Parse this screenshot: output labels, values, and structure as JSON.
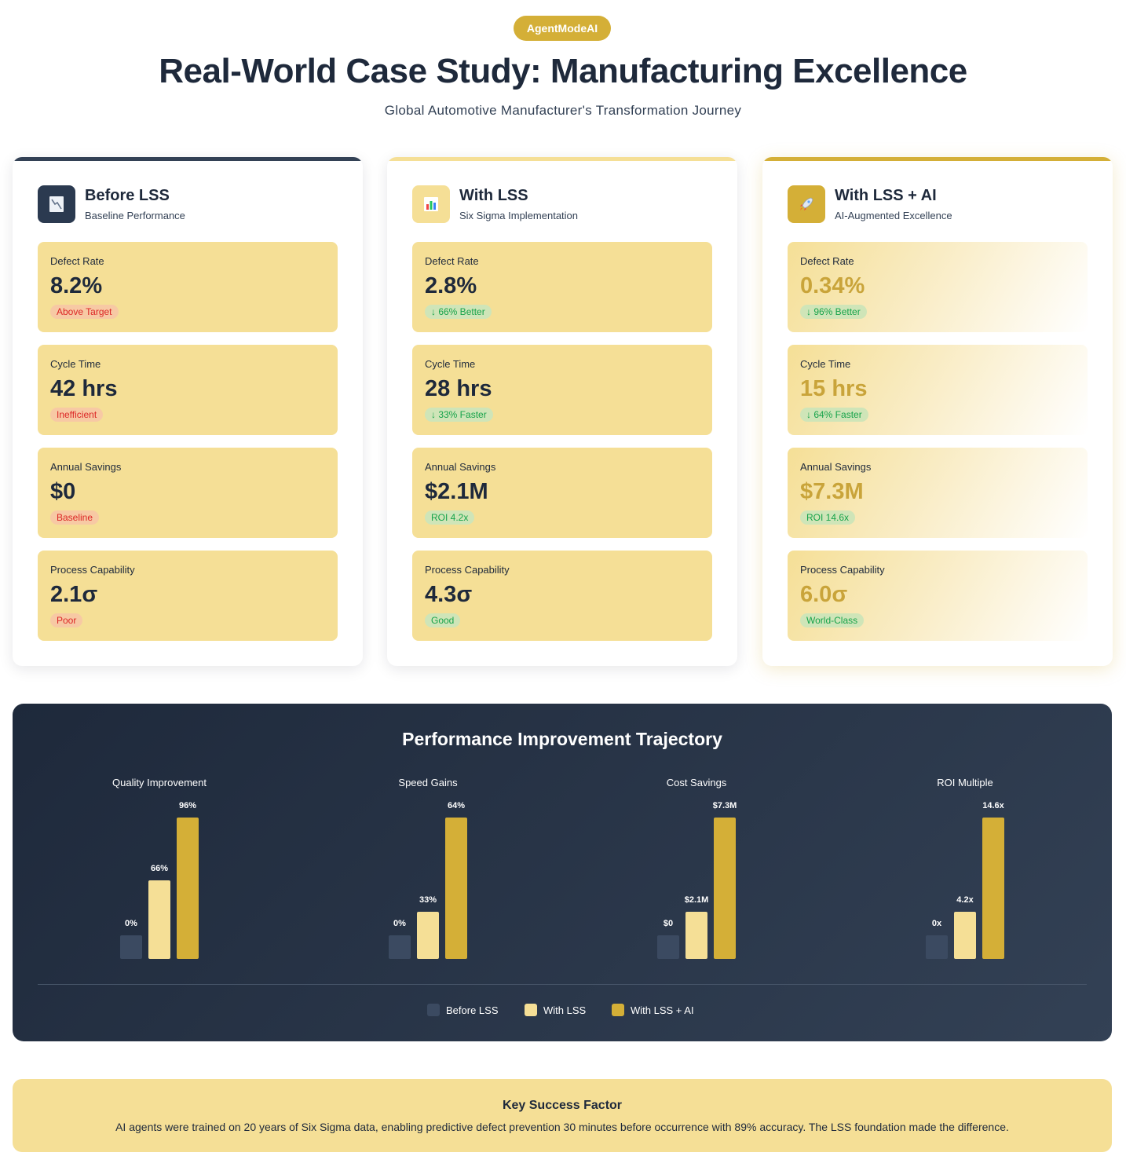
{
  "header": {
    "brand": "AgentModeAI",
    "title": "Real-World Case Study: Manufacturing Excellence",
    "subtitle": "Global Automotive Manufacturer's Transformation Journey"
  },
  "cards": [
    {
      "title": "Before LSS",
      "subtitle": "Baseline Performance",
      "icon": "chart-down-icon",
      "accent": "#334155",
      "metrics": [
        {
          "label": "Defect Rate",
          "value": "8.2%",
          "badge": "Above Target",
          "status": "bad"
        },
        {
          "label": "Cycle Time",
          "value": "42 hrs",
          "badge": "Inefficient",
          "status": "bad"
        },
        {
          "label": "Annual Savings",
          "value": "$0",
          "badge": "Baseline",
          "status": "bad"
        },
        {
          "label": "Process Capability",
          "value": "2.1σ",
          "badge": "Poor",
          "status": "bad"
        }
      ]
    },
    {
      "title": "With LSS",
      "subtitle": "Six Sigma Implementation",
      "icon": "bar-chart-icon",
      "accent": "#f5df96",
      "metrics": [
        {
          "label": "Defect Rate",
          "value": "2.8%",
          "badge": "↓ 66% Better",
          "status": "good"
        },
        {
          "label": "Cycle Time",
          "value": "28 hrs",
          "badge": "↓ 33% Faster",
          "status": "good"
        },
        {
          "label": "Annual Savings",
          "value": "$2.1M",
          "badge": "ROI 4.2x",
          "status": "good"
        },
        {
          "label": "Process Capability",
          "value": "4.3σ",
          "badge": "Good",
          "status": "good"
        }
      ]
    },
    {
      "title": "With LSS + AI",
      "subtitle": "AI-Augmented Excellence",
      "icon": "rocket-icon",
      "accent": "#d4af37",
      "metrics": [
        {
          "label": "Defect Rate",
          "value": "0.34%",
          "badge": "↓ 96% Better",
          "status": "good"
        },
        {
          "label": "Cycle Time",
          "value": "15 hrs",
          "badge": "↓ 64% Faster",
          "status": "good"
        },
        {
          "label": "Annual Savings",
          "value": "$7.3M",
          "badge": "ROI 14.6x",
          "status": "good"
        },
        {
          "label": "Process Capability",
          "value": "6.0σ",
          "badge": "World-Class",
          "status": "good"
        }
      ]
    }
  ],
  "performance": {
    "title": "Performance Improvement Trajectory",
    "legend": [
      "Before LSS",
      "With LSS",
      "With LSS + AI"
    ]
  },
  "colors": {
    "before": "#3b4a61",
    "with_lss": "#f5df96",
    "with_ai": "#d4af37"
  },
  "chart_data": [
    {
      "type": "bar",
      "title": "Quality Improvement",
      "categories": [
        "Before LSS",
        "With LSS",
        "With LSS + AI"
      ],
      "values": [
        0,
        66,
        96
      ],
      "labels": [
        "0%",
        "66%",
        "96%"
      ]
    },
    {
      "type": "bar",
      "title": "Speed Gains",
      "categories": [
        "Before LSS",
        "With LSS",
        "With LSS + AI"
      ],
      "values": [
        0,
        33,
        64
      ],
      "labels": [
        "0%",
        "33%",
        "64%"
      ]
    },
    {
      "type": "bar",
      "title": "Cost Savings",
      "categories": [
        "Before LSS",
        "With LSS",
        "With LSS + AI"
      ],
      "values": [
        0,
        2.1,
        7.3
      ],
      "labels": [
        "$0",
        "$2.1M",
        "$7.3M"
      ]
    },
    {
      "type": "bar",
      "title": "ROI Multiple",
      "categories": [
        "Before LSS",
        "With LSS",
        "With LSS + AI"
      ],
      "values": [
        0,
        4.2,
        14.6
      ],
      "labels": [
        "0x",
        "4.2x",
        "14.6x"
      ]
    }
  ],
  "key_factor": {
    "title": "Key Success Factor",
    "text": "AI agents were trained on 20 years of Six Sigma data, enabling predictive defect prevention 30 minutes before occurrence with 89% accuracy. The LSS foundation made the difference."
  }
}
